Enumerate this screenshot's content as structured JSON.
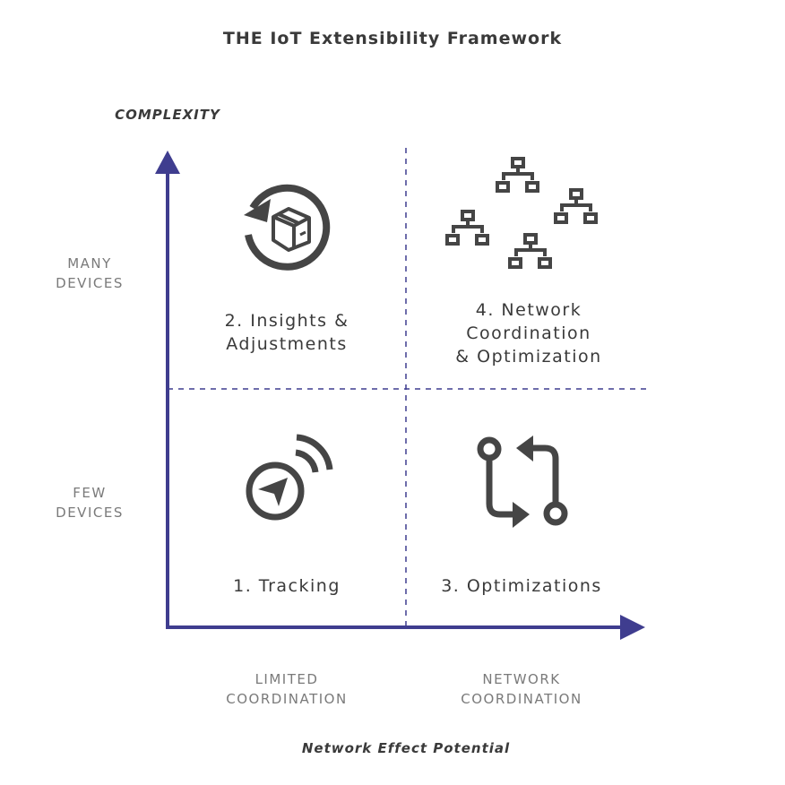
{
  "title": "THE IoT Extensibility Framework",
  "y_axis_label": "COMPLEXITY",
  "x_axis_label": "Network Effect Potential",
  "y_levels": [
    {
      "line1": "MANY",
      "line2": "DEVICES"
    },
    {
      "line1": "FEW",
      "line2": "DEVICES"
    }
  ],
  "x_levels": [
    {
      "line1": "LIMITED",
      "line2": "COORDINATION"
    },
    {
      "line1": "NETWORK",
      "line2": "COORDINATION"
    }
  ],
  "quadrants": [
    {
      "label": "1. Tracking",
      "icon": "gps-tracking-icon"
    },
    {
      "line1": "2. Insights &",
      "line2": "Adjustments",
      "icon": "box-refresh-icon"
    },
    {
      "label": "3. Optimizations",
      "icon": "pull-request-arrows-icon"
    },
    {
      "line1": "4. Network",
      "line2": "Coordination",
      "line3": "& Optimization",
      "icon": "hierarchy-network-icon"
    }
  ],
  "colors": {
    "axis": "#3f3d8f",
    "icon": "#454545",
    "text": "#3a3a3a",
    "muted": "#7a7a7a"
  }
}
